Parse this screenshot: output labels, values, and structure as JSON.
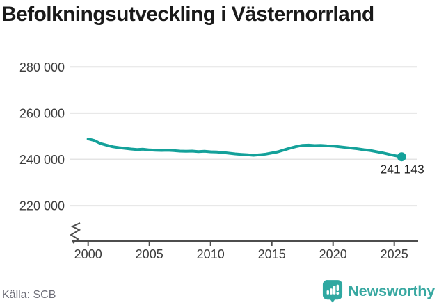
{
  "header": {
    "title": "Befolkningsutveckling i Västernorrland"
  },
  "footer": {
    "source": "Källa: SCB",
    "brand": "Newsworthy"
  },
  "colors": {
    "line": "#14a19a",
    "logo": "#2fa8a1",
    "brand_text": "#38a8a1",
    "grid": "#e4e4e4",
    "axis": "#4d4d4d",
    "tick_text": "#3d3d3d",
    "end_label": "#1f1f1f"
  },
  "chart_data": {
    "type": "line",
    "title": "Befolkningsutveckling i Västernorrland",
    "xlabel": "",
    "ylabel": "",
    "x": [
      2000,
      2000.5,
      2001,
      2001.5,
      2002,
      2002.5,
      2003,
      2003.5,
      2004,
      2004.5,
      2005,
      2005.5,
      2006,
      2006.5,
      2007,
      2007.5,
      2008,
      2008.5,
      2009,
      2009.5,
      2010,
      2010.5,
      2011,
      2011.5,
      2012,
      2012.5,
      2013,
      2013.5,
      2014,
      2014.5,
      2015,
      2015.5,
      2016,
      2016.5,
      2017,
      2017.5,
      2018,
      2018.5,
      2019,
      2019.5,
      2020,
      2020.5,
      2021,
      2021.5,
      2022,
      2022.5,
      2023,
      2023.5,
      2024,
      2024.5,
      2025,
      2025.3,
      2025.6
    ],
    "series": [
      {
        "name": "Befolkning Västernorrland",
        "values": [
          248900,
          248200,
          246900,
          246200,
          245500,
          245100,
          244800,
          244500,
          244300,
          244400,
          244100,
          244000,
          243900,
          244000,
          243800,
          243600,
          243500,
          243600,
          243400,
          243500,
          243300,
          243200,
          243000,
          242700,
          242400,
          242200,
          242000,
          241800,
          242000,
          242300,
          242800,
          243300,
          244100,
          244900,
          245600,
          246100,
          246200,
          246000,
          246100,
          245900,
          245800,
          245500,
          245200,
          244900,
          244600,
          244200,
          243900,
          243400,
          242900,
          242300,
          241700,
          241400,
          241143
        ]
      }
    ],
    "xticks": {
      "values": [
        2000,
        2005,
        2010,
        2015,
        2020,
        2025
      ],
      "labels": [
        "2000",
        "2005",
        "2010",
        "2015",
        "2020",
        "2025"
      ]
    },
    "yticks": {
      "values": [
        220000,
        240000,
        260000,
        280000
      ],
      "labels": [
        "220 000",
        "240 000",
        "260 000",
        "280 000"
      ]
    },
    "xlim": [
      1998.7,
      2026.9
    ],
    "ylim": [
      213000,
      287000
    ],
    "grid": "horizontal",
    "legend": "none",
    "axis_break": true,
    "end_point": {
      "x": 2025.6,
      "y": 241143,
      "label": "241 143"
    }
  }
}
